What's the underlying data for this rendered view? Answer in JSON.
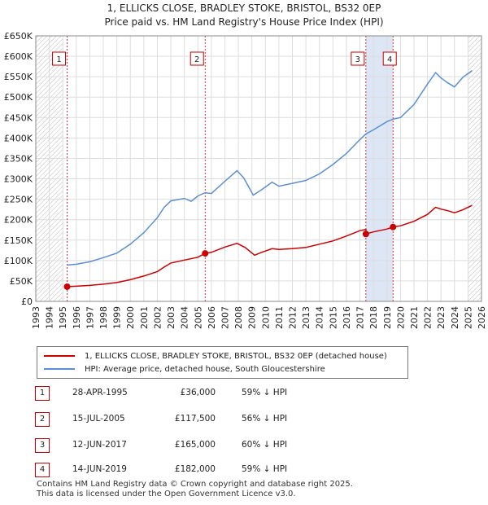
{
  "title": {
    "line1": "1, ELLICKS CLOSE, BRADLEY STOKE, BRISTOL, BS32 0EP",
    "line2": "Price paid vs. HM Land Registry's House Price Index (HPI)"
  },
  "colors": {
    "property": "#cc0000",
    "hpi": "#5b8fd4",
    "shade": "#dde6f5",
    "grid": "#dddddd"
  },
  "chart_data": {
    "type": "line",
    "title": "Price paid vs. HM Land Registry's House Price Index (HPI)",
    "xlabel": "",
    "ylabel": "",
    "xlim": [
      1993,
      2026
    ],
    "ylim": [
      0,
      650000
    ],
    "x_ticks": [
      "1993",
      "1994",
      "1995",
      "1996",
      "1997",
      "1998",
      "1999",
      "2000",
      "2001",
      "2002",
      "2003",
      "2004",
      "2005",
      "2006",
      "2007",
      "2008",
      "2009",
      "2010",
      "2011",
      "2012",
      "2013",
      "2014",
      "2015",
      "2016",
      "2017",
      "2018",
      "2019",
      "2020",
      "2021",
      "2022",
      "2023",
      "2024",
      "2025",
      "2026"
    ],
    "y_ticks": [
      {
        "value": 0,
        "label": "£0"
      },
      {
        "value": 50000,
        "label": "£50K"
      },
      {
        "value": 100000,
        "label": "£100K"
      },
      {
        "value": 150000,
        "label": "£150K"
      },
      {
        "value": 200000,
        "label": "£200K"
      },
      {
        "value": 250000,
        "label": "£250K"
      },
      {
        "value": 300000,
        "label": "£300K"
      },
      {
        "value": 350000,
        "label": "£350K"
      },
      {
        "value": 400000,
        "label": "£400K"
      },
      {
        "value": 450000,
        "label": "£450K"
      },
      {
        "value": 500000,
        "label": "£500K"
      },
      {
        "value": 550000,
        "label": "£550K"
      },
      {
        "value": 600000,
        "label": "£600K"
      },
      {
        "value": 650000,
        "label": "£650K"
      }
    ],
    "shaded_regions": [
      [
        2017.44,
        2019.45
      ]
    ],
    "hatched_regions": [
      [
        1993,
        1995.0
      ],
      [
        2025.0,
        2026
      ]
    ],
    "series": [
      {
        "name": "1, ELLICKS CLOSE, BRADLEY STOKE, BRISTOL, BS32 0EP (detached house)",
        "color": "#cc0000",
        "points": [
          [
            1995.32,
            36000
          ],
          [
            1996,
            37000
          ],
          [
            1997,
            39000
          ],
          [
            1998,
            42000
          ],
          [
            1999,
            46000
          ],
          [
            2000,
            53000
          ],
          [
            2001,
            62000
          ],
          [
            2002,
            73000
          ],
          [
            2002.5,
            84000
          ],
          [
            2003,
            94000
          ],
          [
            2004,
            101000
          ],
          [
            2005.0,
            108000
          ],
          [
            2005.54,
            117500
          ],
          [
            2006,
            120000
          ],
          [
            2007,
            133000
          ],
          [
            2007.9,
            142000
          ],
          [
            2008.5,
            132000
          ],
          [
            2009.2,
            113000
          ],
          [
            2009.8,
            121000
          ],
          [
            2010.5,
            129000
          ],
          [
            2011,
            127000
          ],
          [
            2012,
            129000
          ],
          [
            2013,
            132000
          ],
          [
            2014,
            140000
          ],
          [
            2015,
            148000
          ],
          [
            2016,
            160000
          ],
          [
            2017,
            173000
          ],
          [
            2017.44,
            176000
          ],
          [
            2017.45,
            165000
          ],
          [
            2018,
            170000
          ],
          [
            2019,
            177000
          ],
          [
            2019.45,
            182000
          ],
          [
            2020,
            185000
          ],
          [
            2021,
            196000
          ],
          [
            2022,
            213000
          ],
          [
            2022.6,
            230000
          ],
          [
            2023,
            226000
          ],
          [
            2023.5,
            222000
          ],
          [
            2024,
            217000
          ],
          [
            2024.6,
            224000
          ],
          [
            2025.3,
            235000
          ]
        ]
      },
      {
        "name": "HPI: Average price, detached house, South Gloucestershire",
        "color": "#5b8fd4",
        "points": [
          [
            1995.32,
            89000
          ],
          [
            1996,
            91000
          ],
          [
            1997,
            97000
          ],
          [
            1998,
            107000
          ],
          [
            1999,
            118000
          ],
          [
            2000,
            140000
          ],
          [
            2001,
            168000
          ],
          [
            2002,
            205000
          ],
          [
            2002.5,
            230000
          ],
          [
            2003,
            246000
          ],
          [
            2004,
            252000
          ],
          [
            2004.5,
            245000
          ],
          [
            2005.0,
            258000
          ],
          [
            2005.54,
            266000
          ],
          [
            2006,
            264000
          ],
          [
            2007,
            294000
          ],
          [
            2007.9,
            320000
          ],
          [
            2008.4,
            302000
          ],
          [
            2009.1,
            260000
          ],
          [
            2009.7,
            273000
          ],
          [
            2010.5,
            292000
          ],
          [
            2011,
            282000
          ],
          [
            2012,
            289000
          ],
          [
            2013,
            296000
          ],
          [
            2014,
            312000
          ],
          [
            2015,
            335000
          ],
          [
            2016,
            362000
          ],
          [
            2017,
            396000
          ],
          [
            2017.44,
            410000
          ],
          [
            2018,
            420000
          ],
          [
            2019,
            440000
          ],
          [
            2019.45,
            446000
          ],
          [
            2020,
            450000
          ],
          [
            2021,
            482000
          ],
          [
            2022,
            532000
          ],
          [
            2022.6,
            560000
          ],
          [
            2023,
            547000
          ],
          [
            2023.5,
            535000
          ],
          [
            2024,
            525000
          ],
          [
            2024.6,
            548000
          ],
          [
            2025.3,
            565000
          ]
        ]
      }
    ],
    "sales": [
      {
        "label": "1",
        "x": 1995.32,
        "price": 36000
      },
      {
        "label": "2",
        "x": 2005.54,
        "price": 117500
      },
      {
        "label": "3",
        "x": 2017.44,
        "price": 165000
      },
      {
        "label": "4",
        "x": 2019.45,
        "price": 182000
      }
    ]
  },
  "legend": {
    "property": "1, ELLICKS CLOSE, BRADLEY STOKE, BRISTOL, BS32 0EP (detached house)",
    "hpi": "HPI: Average price, detached house, South Gloucestershire"
  },
  "sales_table": [
    {
      "num": "1",
      "date": "28-APR-1995",
      "price": "£36,000",
      "hpi": "59% ↓ HPI"
    },
    {
      "num": "2",
      "date": "15-JUL-2005",
      "price": "£117,500",
      "hpi": "56% ↓ HPI"
    },
    {
      "num": "3",
      "date": "12-JUN-2017",
      "price": "£165,000",
      "hpi": "60% ↓ HPI"
    },
    {
      "num": "4",
      "date": "14-JUN-2019",
      "price": "£182,000",
      "hpi": "59% ↓ HPI"
    }
  ],
  "footer": {
    "line1": "Contains HM Land Registry data © Crown copyright and database right 2025.",
    "line2": "This data is licensed under the Open Government Licence v3.0."
  }
}
